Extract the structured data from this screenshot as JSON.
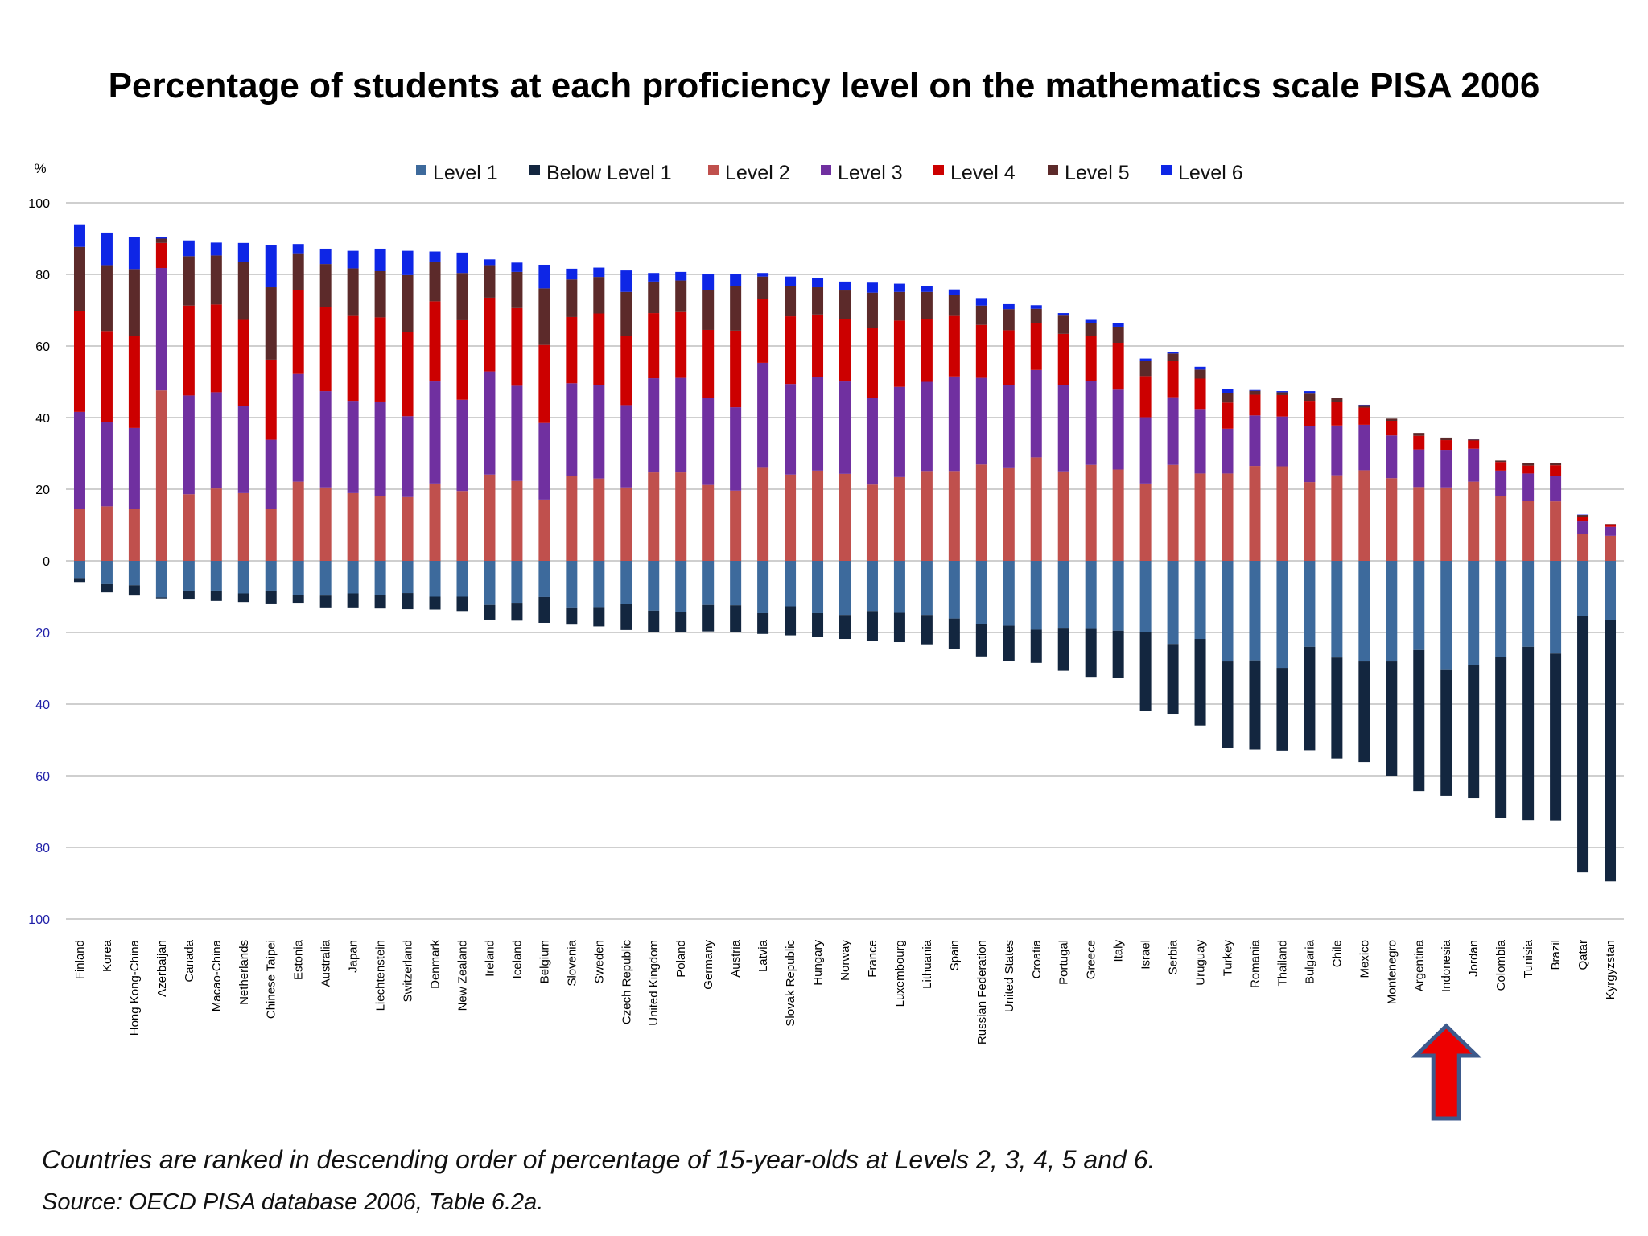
{
  "chart_data": {
    "type": "bar",
    "title": "Percentage of students at each proficiency level on the mathematics scale  PISA 2006",
    "ylabel": "%",
    "ylim": [
      -100,
      100
    ],
    "yticks_up": [
      "100",
      "80",
      "60",
      "40",
      "20",
      "0"
    ],
    "yticks_down": [
      "20",
      "40",
      "60",
      "80",
      "100"
    ],
    "legend": [
      "Level 1",
      "Below Level 1",
      "Level 2",
      "Level 3",
      "Level 4",
      "Level 5",
      "Level 6"
    ],
    "legend_position": "top",
    "grid": true,
    "categories": [
      "Finland",
      "Korea",
      "Hong Kong-China",
      "Azerbaijan",
      "Canada",
      "Macao-China",
      "Netherlands",
      "Chinese Taipei",
      "Estonia",
      "Australia",
      "Japan",
      "Liechtenstein",
      "Switzerland",
      "Denmark",
      "New Zealand",
      "Ireland",
      "Iceland",
      "Belgium",
      "Slovenia",
      "Sweden",
      "Czech Republic",
      "United Kingdom",
      "Poland",
      "Germany",
      "Austria",
      "Latvia",
      "Slovak Republic",
      "Hungary",
      "Norway",
      "France",
      "Luxembourg",
      "Lithuania",
      "Spain",
      "Russian Federation",
      "United States",
      "Croatia",
      "Portugal",
      "Greece",
      "Italy",
      "Israel",
      "Serbia",
      "Uruguay",
      "Turkey",
      "Romania",
      "Thailand",
      "Bulgaria",
      "Chile",
      "Mexico",
      "Montenegro",
      "Argentina",
      "Indonesia",
      "Jordan",
      "Colombia",
      "Tunisia",
      "Brazil",
      "Qatar",
      "Kyrgyzstan"
    ],
    "series": [
      {
        "name": "Below Level 1",
        "color": "#13263f",
        "values": [
          -1.1,
          -2.3,
          -2.9,
          -0.3,
          -2.5,
          -2.9,
          -2.4,
          -3.6,
          -2.2,
          -3.3,
          -3.9,
          -3.7,
          -4.5,
          -3.6,
          -4.0,
          -4.1,
          -5.0,
          -7.2,
          -4.8,
          -5.4,
          -7.2,
          -5.9,
          -5.6,
          -7.4,
          -7.5,
          -5.8,
          -8.1,
          -6.6,
          -6.7,
          -8.4,
          -8.2,
          -8.2,
          -8.6,
          -9.1,
          -9.9,
          -9.3,
          -11.8,
          -13.4,
          -13.2,
          -21.8,
          -19.5,
          -24.2,
          -24.1,
          -24.9,
          -23.1,
          -28.9,
          -28.2,
          -28.1,
          -31.9,
          -39.4,
          -35.1,
          -37.1,
          -44.9,
          -48.4,
          -46.6,
          -71.6,
          -72.9
        ]
      },
      {
        "name": "Level 1",
        "color": "#3d6a9c",
        "values": [
          -4.8,
          -6.5,
          -6.8,
          -10.2,
          -8.3,
          -8.3,
          -9.1,
          -8.3,
          -9.5,
          -9.7,
          -9.1,
          -9.6,
          -9.0,
          -10.0,
          -10.0,
          -12.3,
          -11.7,
          -10.1,
          -13.0,
          -12.9,
          -12.1,
          -13.9,
          -14.2,
          -12.3,
          -12.4,
          -14.6,
          -12.7,
          -14.6,
          -15.1,
          -14.0,
          -14.5,
          -15.1,
          -16.1,
          -17.6,
          -18.1,
          -19.2,
          -18.9,
          -19.0,
          -19.5,
          -20.0,
          -23.2,
          -21.8,
          -28.1,
          -27.8,
          -29.9,
          -24.0,
          -27.0,
          -28.1,
          -28.1,
          -24.9,
          -30.5,
          -29.2,
          -26.9,
          -24.0,
          -25.9,
          -15.4,
          -16.6
        ]
      },
      {
        "name": "Level 2",
        "color": "#c0504d",
        "values": [
          14.4,
          15.2,
          14.5,
          47.6,
          18.6,
          20.2,
          18.9,
          14.4,
          22.1,
          20.5,
          18.9,
          18.2,
          17.8,
          21.6,
          19.5,
          24.1,
          22.3,
          17.1,
          23.6,
          23.0,
          20.5,
          24.7,
          24.7,
          21.2,
          19.6,
          26.2,
          24.1,
          25.2,
          24.3,
          21.3,
          23.4,
          25.1,
          25.1,
          26.9,
          26.1,
          28.9,
          25.0,
          26.8,
          25.5,
          21.6,
          26.8,
          24.4,
          24.4,
          26.5,
          26.4,
          22.0,
          23.9,
          25.3,
          23.1,
          20.6,
          20.5,
          22.1,
          18.2,
          16.7,
          16.6,
          7.5,
          7.0
        ]
      },
      {
        "name": "Level 3",
        "color": "#7030a0",
        "values": [
          27.2,
          23.5,
          22.6,
          34.2,
          27.6,
          26.9,
          24.3,
          19.4,
          30.1,
          26.9,
          25.8,
          26.3,
          22.6,
          28.5,
          25.5,
          28.8,
          26.6,
          21.4,
          26.0,
          26.0,
          23.0,
          26.3,
          26.4,
          24.3,
          23.3,
          29.1,
          25.3,
          26.1,
          25.8,
          24.2,
          25.2,
          24.9,
          26.4,
          24.2,
          23.1,
          24.4,
          24.1,
          23.4,
          22.3,
          18.5,
          18.9,
          18.0,
          12.5,
          14.1,
          13.9,
          15.6,
          13.9,
          12.7,
          11.9,
          10.5,
          10.5,
          9.2,
          7.0,
          7.7,
          7.1,
          3.5,
          2.5
        ]
      },
      {
        "name": "Level 4",
        "color": "#cc0000",
        "values": [
          28.1,
          25.5,
          25.7,
          7.0,
          25.1,
          24.5,
          24.1,
          22.4,
          23.4,
          23.4,
          23.7,
          23.5,
          23.6,
          22.4,
          22.2,
          20.6,
          21.7,
          21.8,
          18.5,
          20.1,
          19.4,
          18.2,
          18.4,
          19.0,
          21.4,
          17.8,
          18.9,
          17.5,
          17.4,
          19.6,
          18.5,
          17.6,
          16.9,
          14.8,
          15.2,
          13.2,
          14.3,
          12.5,
          13.1,
          11.5,
          10.1,
          8.5,
          7.3,
          5.8,
          6.0,
          7.1,
          6.5,
          4.8,
          4.1,
          3.8,
          2.7,
          2.3,
          2.4,
          2.2,
          3.0,
          1.2,
          0.7
        ]
      },
      {
        "name": "Level 5",
        "color": "#5c2a2a",
        "values": [
          18.0,
          18.4,
          18.7,
          1.2,
          13.8,
          13.7,
          16.1,
          20.2,
          10.1,
          12.1,
          13.3,
          12.9,
          15.8,
          11.1,
          13.2,
          9.1,
          10.1,
          15.8,
          10.5,
          10.2,
          12.2,
          8.8,
          8.8,
          11.2,
          12.4,
          6.3,
          8.4,
          7.6,
          8.0,
          9.8,
          8.0,
          7.5,
          5.9,
          5.4,
          5.9,
          3.9,
          5.1,
          3.6,
          4.5,
          4.2,
          2.1,
          2.5,
          2.6,
          1.1,
          0.8,
          2.0,
          1.1,
          0.7,
          0.6,
          0.8,
          0.7,
          0.3,
          0.4,
          0.6,
          0.5,
          0.6,
          0.1
        ]
      },
      {
        "name": "Level 6",
        "color": "#0e26e6",
        "values": [
          6.3,
          9.1,
          9.0,
          0.4,
          4.4,
          3.6,
          5.4,
          11.8,
          2.8,
          4.3,
          4.9,
          6.3,
          6.8,
          2.8,
          5.7,
          1.6,
          2.6,
          6.6,
          3.0,
          2.6,
          6.0,
          2.4,
          2.4,
          4.5,
          3.5,
          1.0,
          2.7,
          2.7,
          2.5,
          2.8,
          2.3,
          1.7,
          1.5,
          2.1,
          1.4,
          1.0,
          0.7,
          1.0,
          1.0,
          0.7,
          0.5,
          0.8,
          1.1,
          0.2,
          0.3,
          0.7,
          0.2,
          0.1,
          0.0,
          0.0,
          0.0,
          0.1,
          0.0,
          0.0,
          0.0,
          0.1,
          0.0
        ]
      }
    ],
    "highlight_category": "Indonesia"
  },
  "notes": {
    "ranking": "Countries are ranked in descending order of percentage of 15-year-olds at Levels 2, 3, 4, 5 and 6.",
    "source": "Source: OECD PISA database 2006, Table 6.2a."
  },
  "colors": {
    "arrow_fill": "#ee0000",
    "arrow_stroke": "#3d5a8c",
    "axis_label_blue": "#1f1fa8",
    "gridline": "#bfbfbf"
  }
}
